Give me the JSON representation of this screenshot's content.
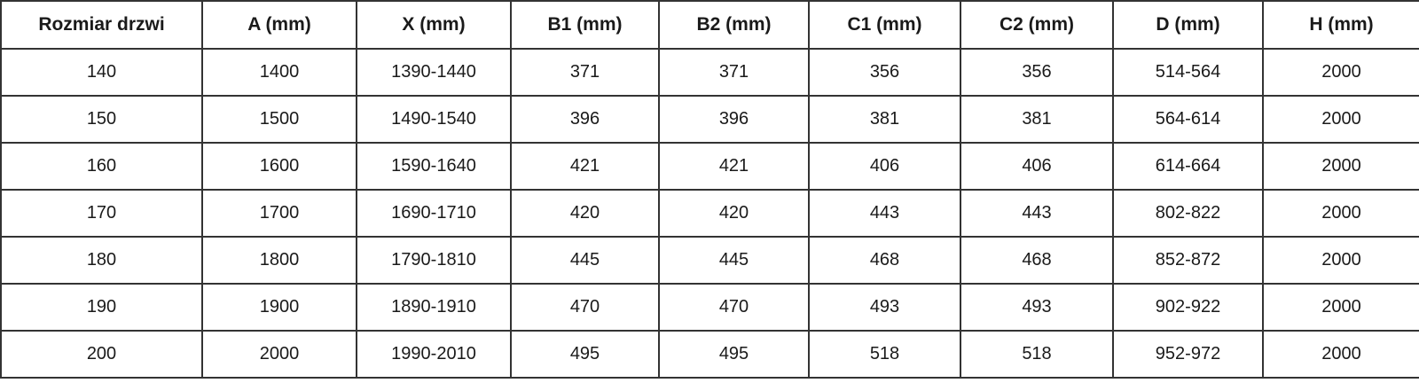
{
  "table": {
    "headers": [
      "Rozmiar drzwi",
      "A (mm)",
      "X (mm)",
      "B1 (mm)",
      "B2 (mm)",
      "C1 (mm)",
      "C2 (mm)",
      "D (mm)",
      "H (mm)"
    ],
    "rows": [
      [
        "140",
        "1400",
        "1390-1440",
        "371",
        "371",
        "356",
        "356",
        "514-564",
        "2000"
      ],
      [
        "150",
        "1500",
        "1490-1540",
        "396",
        "396",
        "381",
        "381",
        "564-614",
        "2000"
      ],
      [
        "160",
        "1600",
        "1590-1640",
        "421",
        "421",
        "406",
        "406",
        "614-664",
        "2000"
      ],
      [
        "170",
        "1700",
        "1690-1710",
        "420",
        "420",
        "443",
        "443",
        "802-822",
        "2000"
      ],
      [
        "180",
        "1800",
        "1790-1810",
        "445",
        "445",
        "468",
        "468",
        "852-872",
        "2000"
      ],
      [
        "190",
        "1900",
        "1890-1910",
        "470",
        "470",
        "493",
        "493",
        "902-922",
        "2000"
      ],
      [
        "200",
        "2000",
        "1990-2010",
        "495",
        "495",
        "518",
        "518",
        "952-972",
        "2000"
      ]
    ]
  },
  "colors": {
    "border": "#333333",
    "text": "#1a1a1a",
    "background": "#ffffff"
  },
  "chart_data": {
    "type": "table",
    "title": "",
    "columns": [
      "Rozmiar drzwi",
      "A (mm)",
      "X (mm)",
      "B1 (mm)",
      "B2 (mm)",
      "C1 (mm)",
      "C2 (mm)",
      "D (mm)",
      "H (mm)"
    ],
    "rows": [
      [
        "140",
        "1400",
        "1390-1440",
        "371",
        "371",
        "356",
        "356",
        "514-564",
        "2000"
      ],
      [
        "150",
        "1500",
        "1490-1540",
        "396",
        "396",
        "381",
        "381",
        "564-614",
        "2000"
      ],
      [
        "160",
        "1600",
        "1590-1640",
        "421",
        "421",
        "406",
        "406",
        "614-664",
        "2000"
      ],
      [
        "170",
        "1700",
        "1690-1710",
        "420",
        "420",
        "443",
        "443",
        "802-822",
        "2000"
      ],
      [
        "180",
        "1800",
        "1790-1810",
        "445",
        "445",
        "468",
        "468",
        "852-872",
        "2000"
      ],
      [
        "190",
        "1900",
        "1890-1910",
        "470",
        "470",
        "493",
        "493",
        "902-922",
        "2000"
      ],
      [
        "200",
        "2000",
        "1990-2010",
        "495",
        "495",
        "518",
        "518",
        "952-972",
        "2000"
      ]
    ],
    "layout": {
      "header_bold": true,
      "cell_alignment": "center",
      "grid": true
    }
  }
}
